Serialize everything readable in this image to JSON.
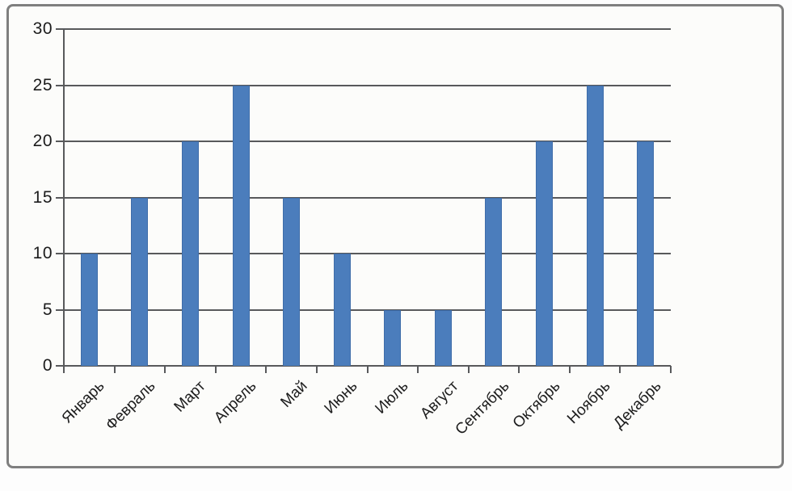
{
  "chart_data": {
    "type": "bar",
    "title": "",
    "xlabel": "",
    "ylabel": "",
    "categories": [
      "Январь",
      "Февраль",
      "Март",
      "Апрель",
      "Май",
      "Июнь",
      "Июль",
      "Август",
      "Сентябрь",
      "Октябрь",
      "Ноябрь",
      "Декабрь"
    ],
    "values": [
      10,
      15,
      20,
      25,
      15,
      10,
      5,
      5,
      15,
      20,
      25,
      20
    ],
    "ylim": [
      0,
      30
    ],
    "yticks": [
      0,
      5,
      10,
      15,
      20,
      25,
      30
    ],
    "grid": true,
    "legend": false,
    "colors": {
      "bar_fill": "#4b7dbc",
      "bar_border": "#3f6da9",
      "axis_and_grid": "#58595b",
      "frame_border": "#7f7f7f",
      "label_text": "#1c1c1c",
      "background": "#fcfcfa"
    }
  }
}
